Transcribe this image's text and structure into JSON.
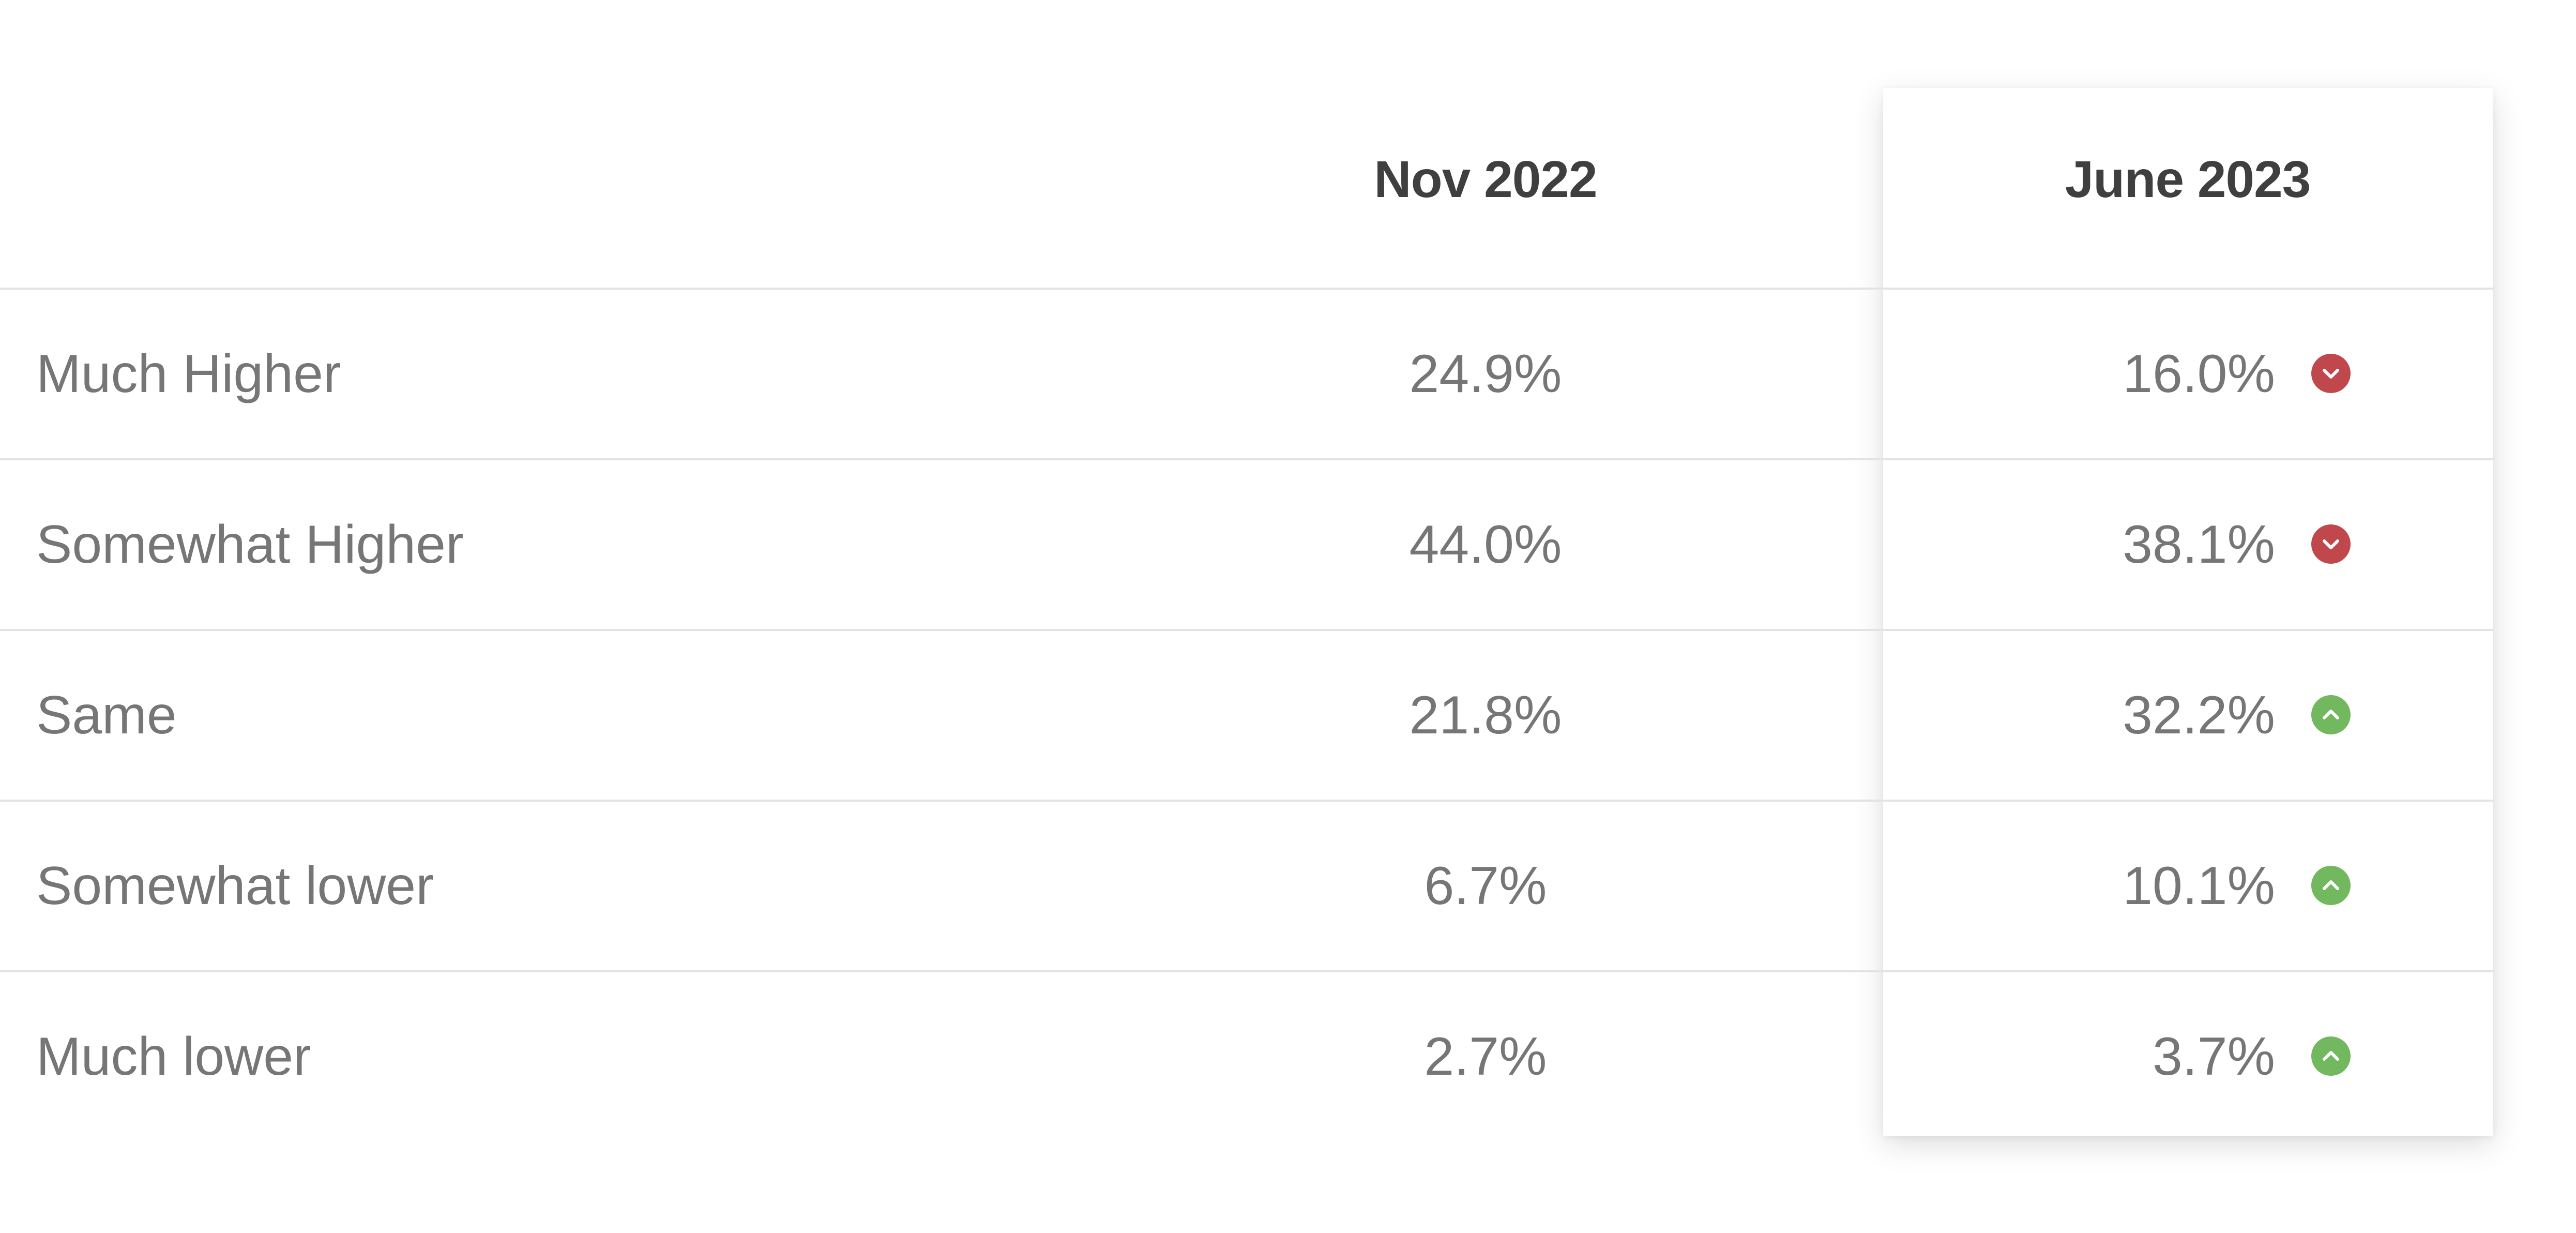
{
  "table": {
    "columns": [
      "",
      "Nov 2022",
      "June 2023"
    ],
    "rows": [
      {
        "label": "Much Higher",
        "nov": "24.9%",
        "jun": "16.0%",
        "trend": "down",
        "trend_icon": "chevron-down-icon",
        "trend_color": "#c0484d"
      },
      {
        "label": "Somewhat Higher",
        "nov": "44.0%",
        "jun": "38.1%",
        "trend": "down",
        "trend_icon": "chevron-down-icon",
        "trend_color": "#c0484d"
      },
      {
        "label": "Same",
        "nov": "21.8%",
        "jun": "32.2%",
        "trend": "up",
        "trend_icon": "chevron-up-icon",
        "trend_color": "#72b85f"
      },
      {
        "label": "Somewhat lower",
        "nov": "6.7%",
        "jun": "10.1%",
        "trend": "up",
        "trend_icon": "chevron-up-icon",
        "trend_color": "#72b85f"
      },
      {
        "label": "Much lower",
        "nov": "2.7%",
        "jun": "3.7%",
        "trend": "up",
        "trend_icon": "chevron-up-icon",
        "trend_color": "#72b85f"
      }
    ]
  },
  "colors": {
    "header_text": "#3f3f3f",
    "body_text": "#767676",
    "divider": "#e3e3e3",
    "down": "#c0484d",
    "up": "#72b85f"
  },
  "chart_data": {
    "type": "table",
    "columns": [
      "",
      "Nov 2022",
      "June 2023"
    ],
    "rows": [
      [
        "Much Higher",
        24.9,
        16.0
      ],
      [
        "Somewhat Higher",
        44.0,
        38.1
      ],
      [
        "Same",
        21.8,
        32.2
      ],
      [
        "Somewhat lower",
        6.7,
        10.1
      ],
      [
        "Much lower",
        2.7,
        3.7
      ]
    ],
    "unit": "%",
    "changes": [
      "down",
      "down",
      "up",
      "up",
      "up"
    ]
  }
}
